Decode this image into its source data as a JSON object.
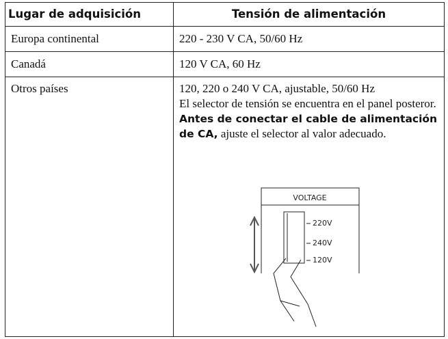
{
  "table": {
    "header": [
      "Lugar de adquisición",
      "Tensión de alimentación"
    ],
    "rows": [
      [
        "Europa continental",
        "220 - 230 V CA, 50/60 Hz"
      ],
      [
        "Canadá",
        "120 V CA, 60 Hz"
      ]
    ],
    "last_row": {
      "place": "Otros países",
      "voltage": "120, 220 o 240 V CA, ajustable, 50/60 Hz",
      "note": "El selector de tensión se encuentra en el panel posteror.",
      "note_bold": "Antes de conectar el cable de alimentación de CA,",
      "note_end": "ajuste el selector al valor adecuado."
    }
  },
  "figure": {
    "title": "VOLTAGE",
    "labels": [
      "220V",
      "240V",
      "120V"
    ]
  }
}
